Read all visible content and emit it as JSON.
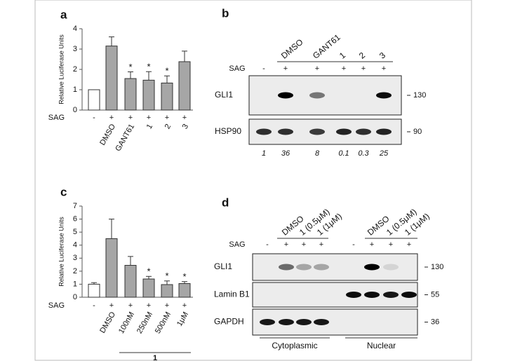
{
  "chart_data": [
    {
      "type": "bar",
      "panel_label": "a",
      "ylabel": "Relative Luciferase Units",
      "categories": [
        null,
        "DMSO",
        "GANT61",
        "1",
        "2",
        "3"
      ],
      "values": [
        1,
        3.15,
        1.55,
        1.47,
        1.33,
        2.38
      ],
      "errors": [
        0,
        0.45,
        0.33,
        0.42,
        0.35,
        0.52
      ],
      "colors": [
        "#ffffff",
        "#a6a6a6",
        "#a6a6a6",
        "#a6a6a6",
        "#a6a6a6",
        "#a6a6a6"
      ],
      "annotations": [
        null,
        null,
        "*",
        "*",
        "*",
        null
      ],
      "ylim": [
        0,
        4
      ],
      "yticks": [
        0,
        1,
        2,
        3,
        4
      ],
      "row_label": "SAG",
      "row_values": [
        "-",
        "+",
        "+",
        "+",
        "+",
        "+"
      ]
    },
    {
      "type": "bar",
      "panel_label": "c",
      "ylabel": "Relative Luciferase Units",
      "categories": [
        null,
        "DMSO",
        "100nM",
        "250nM",
        "500nM",
        "1μM"
      ],
      "values": [
        1,
        4.5,
        2.45,
        1.4,
        0.97,
        1.05
      ],
      "errors": [
        0.12,
        1.5,
        0.68,
        0.2,
        0.28,
        0.15
      ],
      "colors": [
        "#ffffff",
        "#a6a6a6",
        "#a6a6a6",
        "#a6a6a6",
        "#a6a6a6",
        "#a6a6a6"
      ],
      "annotations": [
        null,
        null,
        null,
        "*",
        "*",
        "*"
      ],
      "ylim": [
        0,
        7
      ],
      "yticks": [
        0,
        1,
        2,
        3,
        4,
        5,
        6,
        7
      ],
      "row_label": "SAG",
      "row_values": [
        "-",
        "+",
        "+",
        "+",
        "+",
        "+"
      ],
      "group_label": "1"
    }
  ],
  "blots": [
    {
      "panel_label": "b",
      "lane_headers": [
        null,
        "DMSO",
        "GANT61",
        "1",
        "2",
        "3"
      ],
      "row_label": "SAG",
      "row_values": [
        "-",
        "+",
        "+",
        "+",
        "+",
        "+"
      ],
      "rows": [
        {
          "label": "GLI1",
          "marker": 130
        },
        {
          "label": "HSP90",
          "marker": 90
        }
      ],
      "quantification": [
        1,
        36,
        8,
        0.1,
        0.3,
        25
      ]
    },
    {
      "panel_label": "d",
      "lane_headers": [
        null,
        "DMSO",
        "1 (0.5μM)",
        "1 (1μM)",
        null,
        "DMSO",
        "1 (0.5μM)",
        "1 (1μM)"
      ],
      "row_label": "SAG",
      "row_values": [
        "-",
        "+",
        "+",
        "+",
        "-",
        "+",
        "+",
        "+"
      ],
      "rows": [
        {
          "label": "GLI1",
          "marker": 130
        },
        {
          "label": "Lamin B1",
          "marker": 55
        },
        {
          "label": "GAPDH",
          "marker": 36
        }
      ],
      "groups": [
        "Cytoplasmic",
        "Nuclear"
      ]
    }
  ]
}
